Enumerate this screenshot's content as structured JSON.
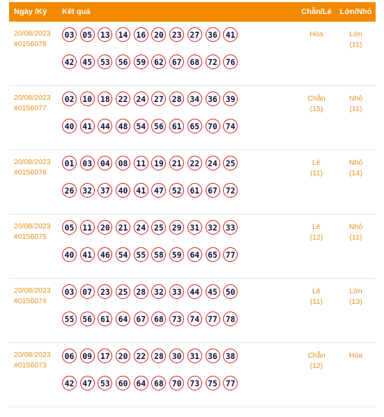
{
  "header": {
    "date": "Ngày /Kỳ",
    "result": "Kết quả",
    "chan_le": "Chẵn/Lẻ",
    "lon_nho": "Lớn/Nhỏ"
  },
  "colors": {
    "accent": "#f28a00",
    "ball_border": "#d81818",
    "text": "#e8911c"
  },
  "draws": [
    {
      "date": "20/08/2023",
      "id": "#0156078",
      "numbers": [
        "03",
        "05",
        "13",
        "14",
        "16",
        "20",
        "23",
        "27",
        "36",
        "41",
        "42",
        "45",
        "53",
        "56",
        "59",
        "62",
        "67",
        "68",
        "72",
        "76"
      ],
      "chan_le": "Hòa",
      "chan_le_count": "",
      "lon_nho": "Lớn",
      "lon_nho_count": "(11)"
    },
    {
      "date": "20/08/2023",
      "id": "#0156077",
      "numbers": [
        "02",
        "10",
        "18",
        "22",
        "24",
        "27",
        "28",
        "34",
        "36",
        "39",
        "40",
        "41",
        "44",
        "48",
        "54",
        "56",
        "61",
        "65",
        "70",
        "74"
      ],
      "chan_le": "Chẵn",
      "chan_le_count": "(15)",
      "lon_nho": "Nhỏ",
      "lon_nho_count": "(11)"
    },
    {
      "date": "20/08/2023",
      "id": "#0156076",
      "numbers": [
        "01",
        "03",
        "04",
        "08",
        "11",
        "19",
        "21",
        "22",
        "24",
        "25",
        "26",
        "32",
        "37",
        "40",
        "41",
        "47",
        "52",
        "61",
        "67",
        "72"
      ],
      "chan_le": "Lẻ",
      "chan_le_count": "(11)",
      "lon_nho": "Nhỏ",
      "lon_nho_count": "(14)"
    },
    {
      "date": "20/08/2023",
      "id": "#0156075",
      "numbers": [
        "05",
        "11",
        "20",
        "21",
        "24",
        "25",
        "29",
        "31",
        "32",
        "33",
        "40",
        "41",
        "46",
        "54",
        "55",
        "58",
        "59",
        "64",
        "65",
        "77"
      ],
      "chan_le": "Lẻ",
      "chan_le_count": "(12)",
      "lon_nho": "Nhỏ",
      "lon_nho_count": "(11)"
    },
    {
      "date": "20/08/2023",
      "id": "#0156074",
      "numbers": [
        "03",
        "07",
        "23",
        "25",
        "28",
        "32",
        "33",
        "44",
        "45",
        "50",
        "55",
        "56",
        "61",
        "64",
        "67",
        "68",
        "73",
        "74",
        "77",
        "78"
      ],
      "chan_le": "Lẻ",
      "chan_le_count": "(11)",
      "lon_nho": "Lớn",
      "lon_nho_count": "(13)"
    },
    {
      "date": "20/08/2023",
      "id": "#0156073",
      "numbers": [
        "06",
        "09",
        "17",
        "20",
        "22",
        "28",
        "30",
        "31",
        "36",
        "38",
        "42",
        "47",
        "53",
        "60",
        "64",
        "68",
        "70",
        "73",
        "75",
        "77"
      ],
      "chan_le": "Chẵn",
      "chan_le_count": "(12)",
      "lon_nho": "Hòa",
      "lon_nho_count": ""
    }
  ]
}
